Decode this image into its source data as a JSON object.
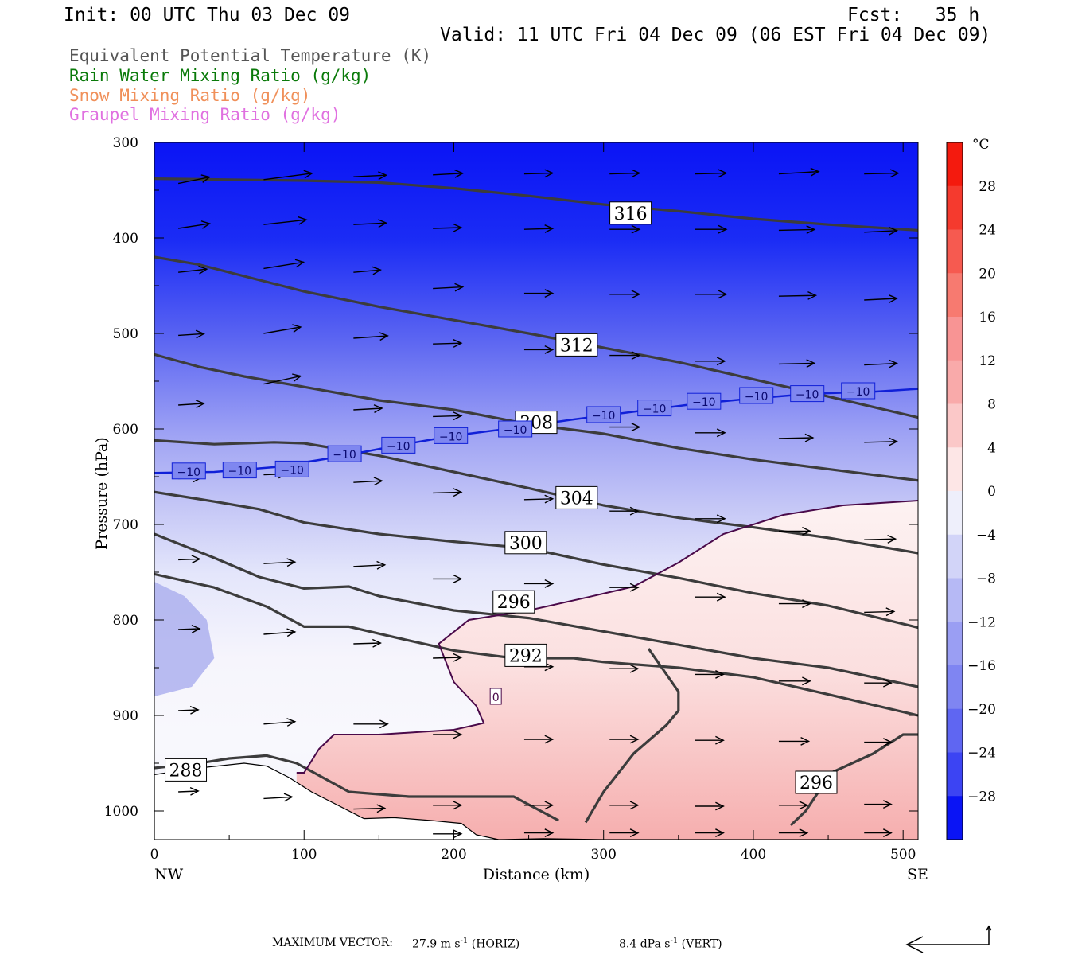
{
  "header": {
    "init": "Init: 00 UTC Thu 03 Dec 09",
    "fcst": "Fcst:   35 h",
    "valid": "Valid: 11 UTC Fri 04 Dec 09 (06 EST Fri 04 Dec 09)"
  },
  "legend": [
    {
      "label": "Equivalent Potential Temperature (K)",
      "color": "#555555"
    },
    {
      "label": "Rain Water Mixing Ratio (g/kg)",
      "color": "#0a7a0a"
    },
    {
      "label": "Snow Mixing Ratio (g/kg)",
      "color": "#f0905a"
    },
    {
      "label": "Graupel Mixing Ratio (g/kg)",
      "color": "#e070e0"
    }
  ],
  "footer": {
    "max_vector_label": "MAXIMUM VECTOR:",
    "horiz_value": "27.9 m s",
    "horiz_exp": "-1",
    "horiz_tag": "(HORIZ)",
    "vert_value": "8.4 dPa s",
    "vert_exp": "-1",
    "vert_tag": "(VERT)"
  },
  "chart_data": {
    "type": "cross-section",
    "xlabel": "Distance (km)",
    "ylabel": "Pressure (hPa)",
    "xlim": [
      0,
      510
    ],
    "ylim": [
      1030,
      300
    ],
    "x_ticks": [
      0,
      100,
      200,
      300,
      400,
      500
    ],
    "y_ticks": [
      300,
      400,
      500,
      600,
      700,
      800,
      900,
      1000
    ],
    "x_end_labels": {
      "left": "NW",
      "right": "SE"
    },
    "colorbar": {
      "unit": "°C",
      "labels": [
        "28",
        "24",
        "20",
        "16",
        "12",
        "8",
        "4",
        "0",
        "−4",
        "−8",
        "−12",
        "−16",
        "−20",
        "−24",
        "−28"
      ]
    },
    "theta_e_contours": [
      {
        "label": "316",
        "label_at": [
          318,
          374
        ],
        "points": [
          [
            0,
            338
          ],
          [
            50,
            339
          ],
          [
            100,
            340
          ],
          [
            150,
            342
          ],
          [
            200,
            348
          ],
          [
            250,
            356
          ],
          [
            300,
            365
          ],
          [
            350,
            372
          ],
          [
            400,
            380
          ],
          [
            450,
            386
          ],
          [
            510,
            392
          ]
        ]
      },
      {
        "label": "312",
        "label_at": [
          282,
          512
        ],
        "points": [
          [
            0,
            420
          ],
          [
            30,
            428
          ],
          [
            60,
            440
          ],
          [
            100,
            456
          ],
          [
            150,
            472
          ],
          [
            200,
            486
          ],
          [
            250,
            500
          ],
          [
            300,
            515
          ],
          [
            350,
            530
          ],
          [
            400,
            548
          ],
          [
            450,
            566
          ],
          [
            510,
            588
          ]
        ]
      },
      {
        "label": "308",
        "label_at": [
          255,
          593
        ],
        "points": [
          [
            0,
            522
          ],
          [
            30,
            535
          ],
          [
            60,
            545
          ],
          [
            100,
            556
          ],
          [
            150,
            570
          ],
          [
            200,
            580
          ],
          [
            250,
            595
          ],
          [
            300,
            605
          ],
          [
            350,
            620
          ],
          [
            400,
            632
          ],
          [
            450,
            642
          ],
          [
            510,
            654
          ]
        ]
      },
      {
        "label": "304",
        "label_at": [
          282,
          672
        ],
        "points": [
          [
            0,
            612
          ],
          [
            40,
            616
          ],
          [
            80,
            614
          ],
          [
            100,
            615
          ],
          [
            150,
            628
          ],
          [
            200,
            645
          ],
          [
            250,
            662
          ],
          [
            300,
            680
          ],
          [
            350,
            693
          ],
          [
            400,
            703
          ],
          [
            450,
            714
          ],
          [
            510,
            730
          ]
        ]
      },
      {
        "label": "300",
        "label_at": [
          248,
          719
        ],
        "points": [
          [
            0,
            666
          ],
          [
            40,
            676
          ],
          [
            70,
            684
          ],
          [
            100,
            698
          ],
          [
            150,
            710
          ],
          [
            200,
            718
          ],
          [
            250,
            725
          ],
          [
            300,
            742
          ],
          [
            350,
            756
          ],
          [
            400,
            772
          ],
          [
            450,
            785
          ],
          [
            510,
            808
          ]
        ]
      },
      {
        "label": "296",
        "label_at": [
          240,
          781
        ],
        "points": [
          [
            0,
            710
          ],
          [
            40,
            735
          ],
          [
            70,
            755
          ],
          [
            100,
            767
          ],
          [
            130,
            765
          ],
          [
            150,
            775
          ],
          [
            200,
            790
          ],
          [
            250,
            798
          ],
          [
            300,
            812
          ],
          [
            350,
            826
          ],
          [
            400,
            840
          ],
          [
            450,
            850
          ],
          [
            510,
            870
          ]
        ]
      },
      {
        "label": "292",
        "label_at": [
          248,
          837
        ],
        "points": [
          [
            0,
            752
          ],
          [
            40,
            766
          ],
          [
            75,
            786
          ],
          [
            100,
            807
          ],
          [
            130,
            807
          ],
          [
            160,
            818
          ],
          [
            200,
            832
          ],
          [
            240,
            840
          ],
          [
            280,
            840
          ],
          [
            300,
            844
          ],
          [
            350,
            850
          ],
          [
            400,
            860
          ],
          [
            450,
            878
          ],
          [
            510,
            900
          ]
        ]
      },
      {
        "label": "288",
        "label_at": [
          21,
          957
        ],
        "points": [
          [
            0,
            955
          ],
          [
            30,
            950
          ],
          [
            50,
            945
          ],
          [
            75,
            942
          ],
          [
            95,
            950
          ],
          [
            130,
            980
          ],
          [
            170,
            985
          ],
          [
            210,
            985
          ],
          [
            240,
            985
          ],
          [
            270,
            1010
          ]
        ]
      },
      {
        "label": "296",
        "label_at": [
          442,
          970
        ],
        "points": [
          [
            288,
            1012
          ],
          [
            300,
            980
          ],
          [
            320,
            940
          ],
          [
            342,
            910
          ],
          [
            350,
            895
          ],
          [
            350,
            875
          ],
          [
            330,
            830
          ]
        ]
      },
      {
        "label": "",
        "label_at": null,
        "points": [
          [
            425,
            1015
          ],
          [
            435,
            1000
          ],
          [
            452,
            960
          ],
          [
            480,
            940
          ],
          [
            500,
            920
          ],
          [
            510,
            920
          ]
        ]
      }
    ],
    "temperature_contours": [
      {
        "label": "0",
        "label_at": [
          228,
          880
        ],
        "points": [
          [
            510,
            675
          ],
          [
            460,
            680
          ],
          [
            420,
            690
          ],
          [
            380,
            710
          ],
          [
            350,
            740
          ],
          [
            320,
            765
          ],
          [
            290,
            776
          ],
          [
            250,
            790
          ],
          [
            210,
            800
          ],
          [
            190,
            825
          ],
          [
            200,
            865
          ],
          [
            215,
            890
          ],
          [
            220,
            908
          ],
          [
            200,
            915
          ],
          [
            150,
            920
          ],
          [
            120,
            920
          ],
          [
            110,
            935
          ],
          [
            100,
            960
          ],
          [
            95,
            960
          ]
        ]
      },
      {
        "label": "−10",
        "label_at": [
          [
            23,
            644
          ],
          [
            57,
            643
          ],
          [
            92,
            642
          ],
          [
            127,
            626
          ],
          [
            163,
            617
          ],
          [
            198,
            607
          ],
          [
            241,
            600
          ],
          [
            300,
            585
          ],
          [
            334,
            578
          ],
          [
            367,
            571
          ],
          [
            402,
            565
          ],
          [
            436,
            563
          ],
          [
            470,
            560
          ]
        ],
        "points": [
          [
            0,
            646
          ],
          [
            40,
            645
          ],
          [
            80,
            640
          ],
          [
            120,
            630
          ],
          [
            160,
            618
          ],
          [
            200,
            607
          ],
          [
            240,
            599
          ],
          [
            280,
            590
          ],
          [
            320,
            582
          ],
          [
            360,
            574
          ],
          [
            400,
            568
          ],
          [
            440,
            563
          ],
          [
            480,
            561
          ],
          [
            510,
            558
          ]
        ]
      }
    ],
    "vectors_note": "wind vectors in the section plane; maximum vector shown in footer",
    "vectors": [
      [
        16,
        343,
        22,
        -8
      ],
      [
        73,
        339,
        34,
        -8
      ],
      [
        133,
        336,
        23,
        -2
      ],
      [
        186,
        334,
        21,
        -2
      ],
      [
        247,
        333,
        20,
        -1
      ],
      [
        304,
        333,
        21,
        -1
      ],
      [
        361,
        333,
        22,
        -1
      ],
      [
        417,
        333,
        28,
        -3
      ],
      [
        474,
        333,
        24,
        -1
      ],
      [
        16,
        390,
        22,
        -6
      ],
      [
        73,
        386,
        30,
        -6
      ],
      [
        133,
        386,
        23,
        -2
      ],
      [
        186,
        390,
        20,
        -1
      ],
      [
        247,
        391,
        20,
        -1
      ],
      [
        304,
        391,
        21,
        0
      ],
      [
        361,
        391,
        22,
        0
      ],
      [
        417,
        392,
        25,
        -1
      ],
      [
        474,
        394,
        23,
        -2
      ],
      [
        16,
        436,
        20,
        -4
      ],
      [
        73,
        432,
        28,
        -8
      ],
      [
        133,
        436,
        19,
        -3
      ],
      [
        186,
        453,
        21,
        -2
      ],
      [
        247,
        458,
        20,
        0
      ],
      [
        304,
        459,
        21,
        0
      ],
      [
        361,
        459,
        22,
        0
      ],
      [
        417,
        461,
        26,
        -1
      ],
      [
        474,
        465,
        23,
        -2
      ],
      [
        16,
        502,
        18,
        -2
      ],
      [
        73,
        500,
        26,
        -8
      ],
      [
        133,
        505,
        24,
        -3
      ],
      [
        186,
        511,
        20,
        -1
      ],
      [
        247,
        517,
        20,
        0
      ],
      [
        304,
        523,
        21,
        0
      ],
      [
        361,
        529,
        21,
        0
      ],
      [
        417,
        532,
        25,
        -1
      ],
      [
        474,
        533,
        23,
        -2
      ],
      [
        16,
        575,
        18,
        -2
      ],
      [
        73,
        553,
        26,
        -10
      ],
      [
        133,
        580,
        20,
        -2
      ],
      [
        186,
        587,
        20,
        -1
      ],
      [
        247,
        592,
        20,
        0
      ],
      [
        304,
        598,
        21,
        0
      ],
      [
        361,
        604,
        21,
        0
      ],
      [
        417,
        610,
        24,
        -1
      ],
      [
        474,
        614,
        23,
        -1
      ],
      [
        16,
        652,
        16,
        -1
      ],
      [
        73,
        648,
        16,
        -1
      ],
      [
        133,
        656,
        20,
        -2
      ],
      [
        186,
        667,
        20,
        -1
      ],
      [
        247,
        674,
        20,
        -1
      ],
      [
        304,
        686,
        20,
        0
      ],
      [
        361,
        694,
        21,
        0
      ],
      [
        417,
        707,
        22,
        0
      ],
      [
        474,
        716,
        22,
        -1
      ],
      [
        16,
        737,
        15,
        -1
      ],
      [
        73,
        741,
        22,
        -2
      ],
      [
        133,
        744,
        22,
        -2
      ],
      [
        186,
        757,
        20,
        0
      ],
      [
        247,
        762,
        20,
        0
      ],
      [
        304,
        766,
        20,
        0
      ],
      [
        361,
        776,
        21,
        0
      ],
      [
        417,
        783,
        22,
        0
      ],
      [
        474,
        792,
        21,
        -1
      ],
      [
        16,
        810,
        15,
        -1
      ],
      [
        73,
        815,
        22,
        -3
      ],
      [
        133,
        825,
        19,
        -1
      ],
      [
        186,
        840,
        20,
        -1
      ],
      [
        247,
        849,
        20,
        0
      ],
      [
        304,
        851,
        20,
        0
      ],
      [
        361,
        857,
        20,
        0
      ],
      [
        417,
        864,
        22,
        0
      ],
      [
        474,
        866,
        19,
        0
      ],
      [
        16,
        895,
        14,
        -1
      ],
      [
        73,
        909,
        22,
        -3
      ],
      [
        133,
        909,
        24,
        0
      ],
      [
        186,
        920,
        20,
        0
      ],
      [
        247,
        925,
        20,
        0
      ],
      [
        304,
        925,
        20,
        0
      ],
      [
        361,
        926,
        20,
        0
      ],
      [
        417,
        927,
        21,
        0
      ],
      [
        474,
        928,
        19,
        0
      ],
      [
        16,
        980,
        14,
        -1
      ],
      [
        73,
        987,
        20,
        -2
      ],
      [
        133,
        998,
        22,
        -1
      ],
      [
        186,
        994,
        20,
        0
      ],
      [
        247,
        994,
        20,
        0
      ],
      [
        304,
        994,
        20,
        0
      ],
      [
        361,
        995,
        20,
        0
      ],
      [
        417,
        994,
        20,
        0
      ],
      [
        474,
        993,
        19,
        0
      ],
      [
        186,
        1024,
        20,
        0
      ],
      [
        247,
        1023,
        20,
        0
      ],
      [
        304,
        1023,
        20,
        0
      ],
      [
        361,
        1023,
        20,
        0
      ],
      [
        417,
        1023,
        20,
        0
      ],
      [
        474,
        1023,
        19,
        0
      ]
    ],
    "terrain": [
      [
        0,
        962
      ],
      [
        30,
        955
      ],
      [
        60,
        950
      ],
      [
        75,
        953
      ],
      [
        90,
        965
      ],
      [
        105,
        980
      ],
      [
        120,
        992
      ],
      [
        140,
        1008
      ],
      [
        160,
        1007
      ],
      [
        185,
        1010
      ],
      [
        205,
        1013
      ],
      [
        215,
        1025
      ],
      [
        230,
        1030
      ],
      [
        260,
        1029
      ],
      [
        300,
        1030
      ],
      [
        350,
        1030
      ],
      [
        400,
        1030
      ],
      [
        450,
        1030
      ],
      [
        510,
        1030
      ]
    ]
  }
}
